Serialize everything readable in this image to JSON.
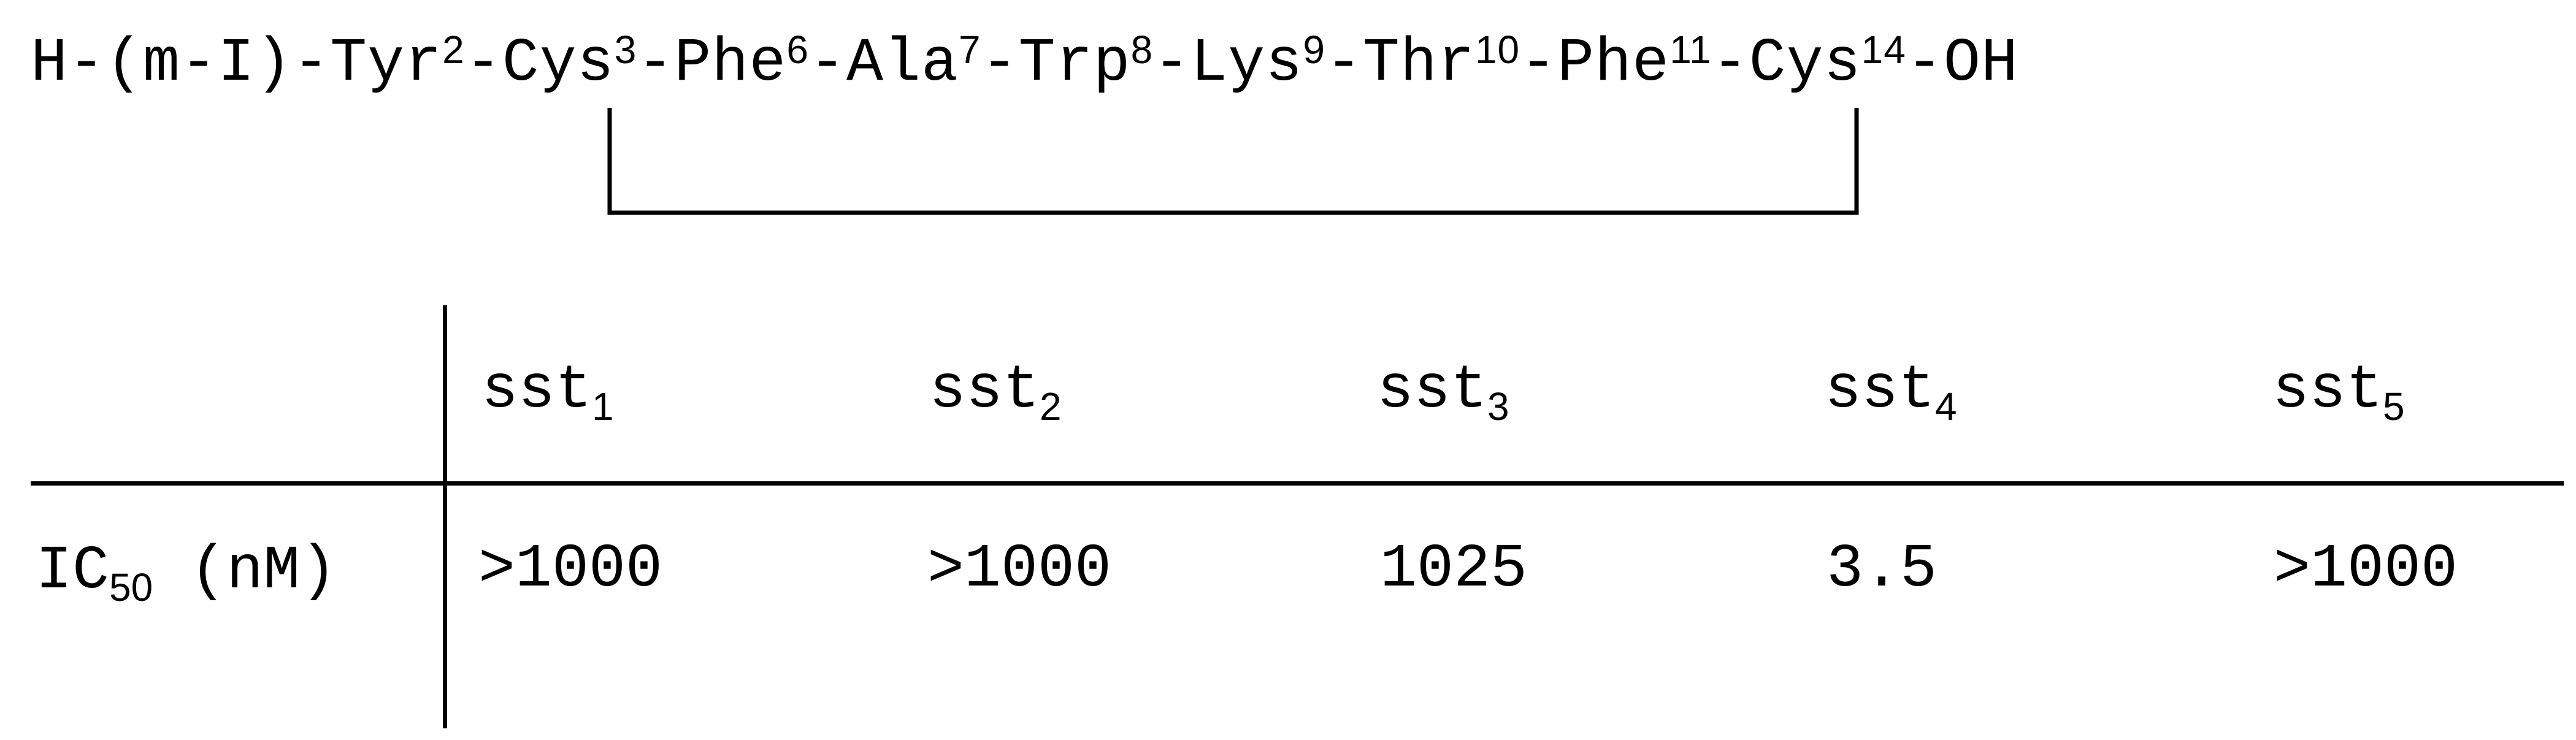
{
  "sequence": {
    "prefix": "H-(m-I)-",
    "residues": [
      {
        "name": "Tyr",
        "num": "2"
      },
      {
        "name": "Cys",
        "num": "3"
      },
      {
        "name": "Phe",
        "num": "6"
      },
      {
        "name": "Ala",
        "num": "7"
      },
      {
        "name": "Trp",
        "num": "8"
      },
      {
        "name": "Lys",
        "num": "9"
      },
      {
        "name": "Thr",
        "num": "10"
      },
      {
        "name": "Phe",
        "num": "11"
      },
      {
        "name": "Cys",
        "num": "14"
      }
    ],
    "suffix": "-OH"
  },
  "table": {
    "row_label": {
      "main": "IC",
      "sub": "50",
      "unit": " (nM)"
    },
    "columns": [
      {
        "main": "sst",
        "sub": "1"
      },
      {
        "main": "sst",
        "sub": "2"
      },
      {
        "main": "sst",
        "sub": "3"
      },
      {
        "main": "sst",
        "sub": "4"
      },
      {
        "main": "sst",
        "sub": "5"
      }
    ],
    "values": [
      ">1000",
      ">1000",
      "1025",
      "3.5",
      ">1000"
    ]
  }
}
